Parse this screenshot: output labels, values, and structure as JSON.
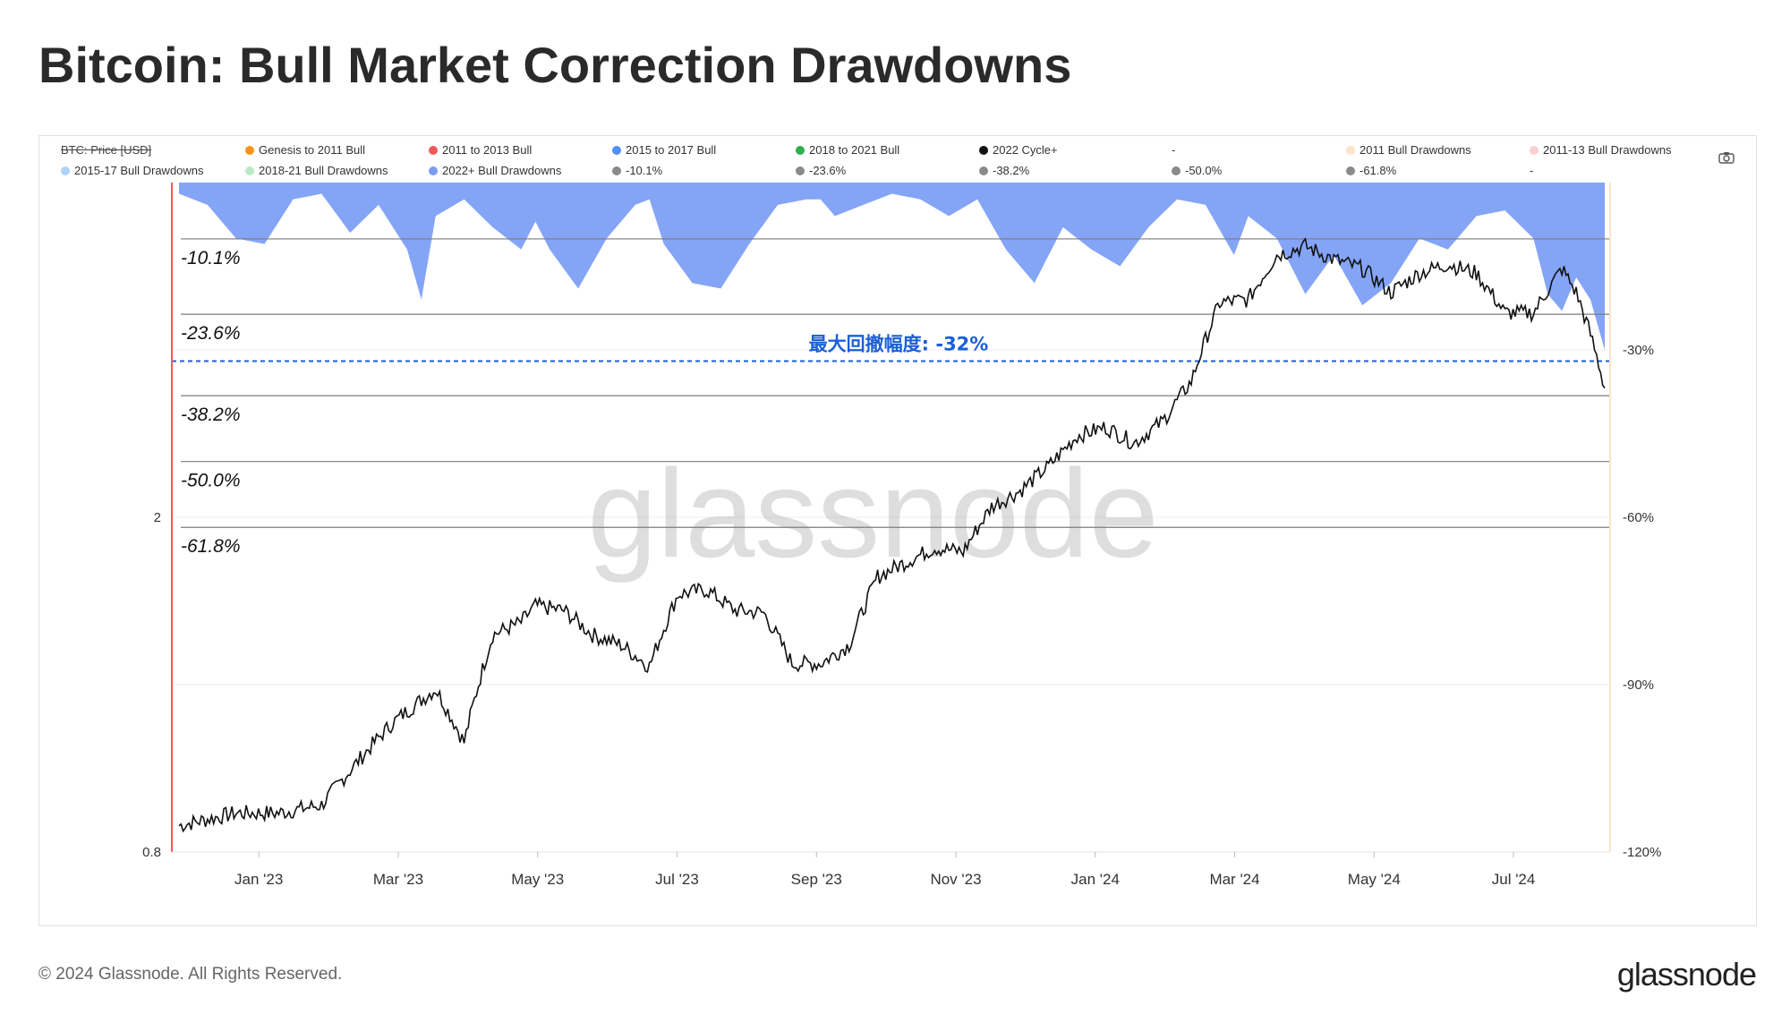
{
  "header": {
    "title": "Bitcoin: Bull Market Correction Drawdowns"
  },
  "legend": {
    "items": [
      {
        "label": "BTC: Price [USD]",
        "color": "#888888",
        "style": "strikethrough-line"
      },
      {
        "label": "Genesis to 2011 Bull",
        "color": "#f7931a"
      },
      {
        "label": "2011 to 2013 Bull",
        "color": "#f05a5a"
      },
      {
        "label": "2015 to 2017 Bull",
        "color": "#4f8ff7"
      },
      {
        "label": "2018 to 2021 Bull",
        "color": "#2db04b"
      },
      {
        "label": "2022 Cycle+",
        "color": "#111111"
      },
      {
        "label": "-",
        "color": ""
      },
      {
        "label": "2011 Bull Drawdowns",
        "color": "#fde3c8"
      },
      {
        "label": "2011-13 Bull Drawdowns",
        "color": "#fbd0d0"
      },
      {
        "label": "2015-17 Bull Drawdowns",
        "color": "#aed3f7"
      },
      {
        "label": "2018-21 Bull Drawdowns",
        "color": "#b9ebc6"
      },
      {
        "label": "2022+ Bull Drawdowns",
        "color": "#7a9cf5"
      },
      {
        "label": "-10.1%",
        "color": "#8a8a8a"
      },
      {
        "label": "-23.6%",
        "color": "#8a8a8a"
      },
      {
        "label": "-38.2%",
        "color": "#8a8a8a"
      },
      {
        "label": "-50.0%",
        "color": "#8a8a8a"
      },
      {
        "label": "-61.8%",
        "color": "#8a8a8a"
      },
      {
        "label": "-",
        "color": ""
      }
    ],
    "camera_icon": "camera-icon"
  },
  "annotation": {
    "text": "最大回撤幅度: -32%",
    "color": "#1a5fd6"
  },
  "watermark": "glassnode",
  "footer": {
    "copyright": "© 2024 Glassnode. All Rights Reserved.",
    "brand": "glassnode"
  },
  "chart_data": {
    "type": "line",
    "x_ticks": [
      "Jan '23",
      "Mar '23",
      "May '23",
      "Jul '23",
      "Sep '23",
      "Nov '23",
      "Jan '24",
      "Mar '24",
      "May '24",
      "Jul '24"
    ],
    "left_axis_ticks": [
      "2",
      "0.8"
    ],
    "right_axis_ticks": [
      "-30%",
      "-60%",
      "-90%",
      "-120%"
    ],
    "right_ylim": [
      -120,
      0
    ],
    "levels": [
      {
        "label": "-10.1%",
        "value": -10.1
      },
      {
        "label": "-23.6%",
        "value": -23.6
      },
      {
        "label": "-38.2%",
        "value": -38.2
      },
      {
        "label": "-50.0%",
        "value": -50.0
      },
      {
        "label": "-61.8%",
        "value": -61.8
      }
    ],
    "max_drawdown_line": -32,
    "series": [
      {
        "name": "2022 Cycle+",
        "type": "line",
        "color": "#111111",
        "x": [
          0,
          0.04,
          0.07,
          0.1,
          0.12,
          0.15,
          0.18,
          0.2,
          0.22,
          0.24,
          0.25,
          0.27,
          0.29,
          0.31,
          0.33,
          0.35,
          0.37,
          0.39,
          0.41,
          0.43,
          0.45,
          0.47,
          0.49,
          0.51,
          0.53,
          0.55,
          0.57,
          0.59,
          0.61,
          0.63,
          0.65,
          0.67,
          0.69,
          0.71,
          0.73,
          0.75,
          0.77,
          0.79,
          0.81,
          0.83,
          0.85,
          0.87,
          0.89,
          0.91,
          0.93,
          0.95,
          0.97,
          0.98,
          0.99,
          1.0
        ],
        "y": [
          0.86,
          0.89,
          0.89,
          0.91,
          1.0,
          1.14,
          1.25,
          1.08,
          1.45,
          1.5,
          1.57,
          1.55,
          1.45,
          1.41,
          1.33,
          1.62,
          1.64,
          1.55,
          1.54,
          1.34,
          1.34,
          1.41,
          1.7,
          1.77,
          1.84,
          1.82,
          2.06,
          2.15,
          2.3,
          2.5,
          2.56,
          2.45,
          2.6,
          2.9,
          3.6,
          3.63,
          4.1,
          4.2,
          4.05,
          3.95,
          3.7,
          3.9,
          4.0,
          3.9,
          3.5,
          3.5,
          3.95,
          3.7,
          3.3,
          2.85
        ]
      },
      {
        "name": "2022+ Bull Drawdowns",
        "type": "area",
        "color": "#7a9cf5",
        "x": [
          0,
          0.02,
          0.04,
          0.06,
          0.08,
          0.1,
          0.12,
          0.14,
          0.16,
          0.17,
          0.18,
          0.2,
          0.22,
          0.24,
          0.25,
          0.26,
          0.28,
          0.3,
          0.32,
          0.33,
          0.34,
          0.36,
          0.38,
          0.4,
          0.42,
          0.44,
          0.45,
          0.46,
          0.48,
          0.5,
          0.52,
          0.54,
          0.56,
          0.58,
          0.6,
          0.62,
          0.64,
          0.66,
          0.68,
          0.7,
          0.72,
          0.74,
          0.75,
          0.77,
          0.79,
          0.81,
          0.83,
          0.85,
          0.87,
          0.89,
          0.91,
          0.93,
          0.95,
          0.96,
          0.97,
          0.98,
          0.99,
          1.0
        ],
        "y": [
          -2,
          -4,
          -10,
          -11,
          -3,
          -2,
          -9,
          -4,
          -12,
          -21,
          -6,
          -3,
          -8,
          -12,
          -7,
          -12,
          -19,
          -10,
          -4,
          -3,
          -11,
          -18,
          -19,
          -11,
          -4,
          -3,
          -3,
          -6,
          -4,
          -2,
          -3,
          -6,
          -3,
          -12,
          -18,
          -8,
          -12,
          -15,
          -8,
          -3,
          -4,
          -13,
          -6,
          -10,
          -20,
          -13,
          -22,
          -18,
          -10,
          -12,
          -6,
          -5,
          -10,
          -20,
          -23,
          -17,
          -21,
          -30
        ]
      }
    ]
  }
}
